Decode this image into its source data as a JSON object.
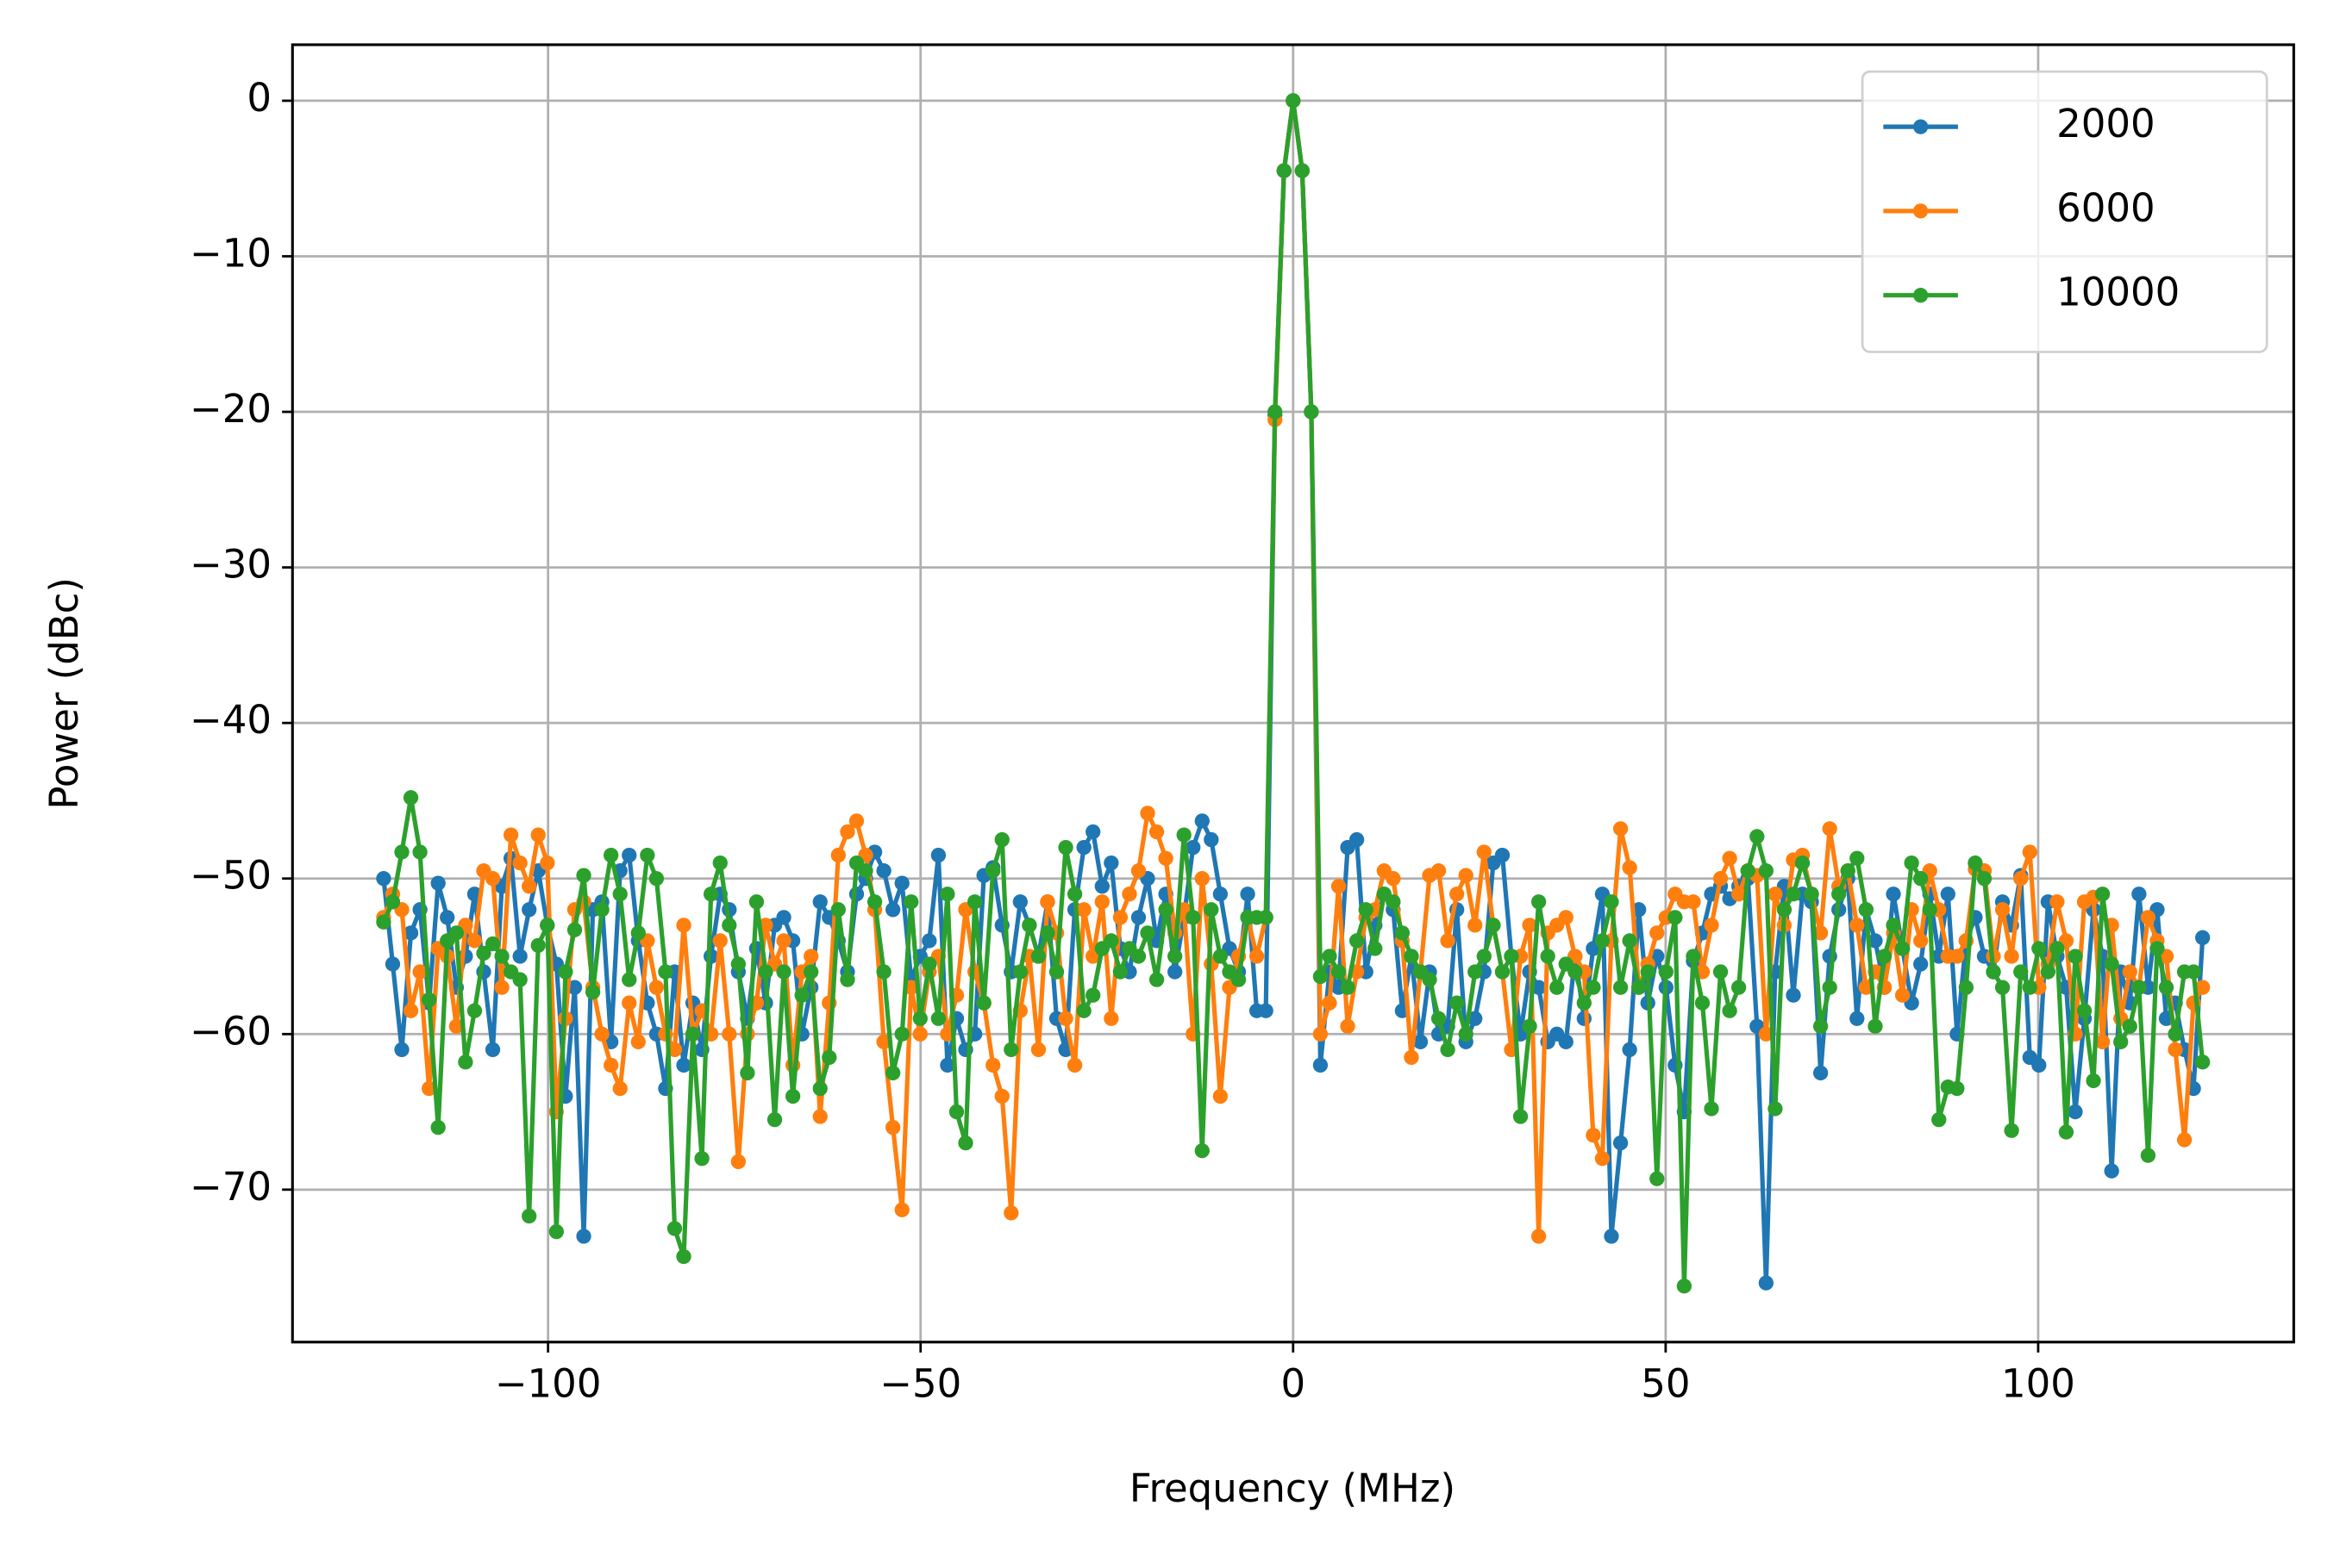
{
  "chart_data": {
    "type": "line",
    "xlabel": "Frequency (MHz)",
    "ylabel": "Power (dBc)",
    "xlim": [
      -134.3,
      134.3
    ],
    "ylim": [
      -79.8,
      3.6
    ],
    "xticks": [
      {
        "value": -100,
        "label": "−100"
      },
      {
        "value": -50,
        "label": "−50"
      },
      0,
      50,
      100
    ],
    "yticks": [
      0,
      {
        "value": -10,
        "label": "−10"
      },
      {
        "value": -20,
        "label": "−20"
      },
      {
        "value": -30,
        "label": "−30"
      },
      {
        "value": -40,
        "label": "−40"
      },
      {
        "value": -50,
        "label": "−50"
      },
      {
        "value": -60,
        "label": "−60"
      },
      {
        "value": -70,
        "label": "−70"
      }
    ],
    "grid": true,
    "legend": "upper right",
    "x": [
      -122.07,
      -120.85,
      -119.63,
      -118.41,
      -117.19,
      -115.97,
      -114.75,
      -113.53,
      -112.3,
      -111.08,
      -109.86,
      -108.64,
      -107.42,
      -106.2,
      -104.98,
      -103.76,
      -102.54,
      -101.32,
      -100.1,
      -98.88,
      -97.66,
      -96.43,
      -95.21,
      -93.99,
      -92.77,
      -91.55,
      -90.33,
      -89.11,
      -87.89,
      -86.67,
      -85.45,
      -84.23,
      -83.01,
      -81.79,
      -80.57,
      -79.35,
      -78.13,
      -76.9,
      -75.68,
      -74.46,
      -73.24,
      -72.02,
      -70.8,
      -69.58,
      -68.36,
      -67.14,
      -65.92,
      -64.7,
      -63.48,
      -62.26,
      -61.04,
      -59.81,
      -58.59,
      -57.37,
      -56.15,
      -54.93,
      -53.71,
      -52.49,
      -51.27,
      -50.05,
      -48.83,
      -47.61,
      -46.39,
      -45.17,
      -43.95,
      -42.72,
      -41.5,
      -40.28,
      -39.06,
      -37.84,
      -36.62,
      -35.4,
      -34.18,
      -32.96,
      -31.74,
      -30.52,
      -29.3,
      -28.08,
      -26.86,
      -25.63,
      -24.41,
      -23.19,
      -21.97,
      -20.75,
      -19.53,
      -18.31,
      -17.09,
      -15.87,
      -14.65,
      -13.43,
      -12.21,
      -10.99,
      -9.77,
      -8.54,
      -7.32,
      -6.1,
      -4.88,
      -3.66,
      -2.44,
      -1.22,
      0,
      1.22,
      2.44,
      3.66,
      4.88,
      6.1,
      7.32,
      8.54,
      9.77,
      10.99,
      12.21,
      13.43,
      14.65,
      15.87,
      17.09,
      18.31,
      19.53,
      20.75,
      21.97,
      23.19,
      24.41,
      25.63,
      26.86,
      28.08,
      29.3,
      30.52,
      31.74,
      32.96,
      34.18,
      35.4,
      36.62,
      37.84,
      39.06,
      40.28,
      41.5,
      42.72,
      43.95,
      45.17,
      46.39,
      47.61,
      48.83,
      50.05,
      51.27,
      52.49,
      53.71,
      54.93,
      56.15,
      57.37,
      58.59,
      59.81,
      61.04,
      62.26,
      63.48,
      64.7,
      65.92,
      67.14,
      68.36,
      69.58,
      70.8,
      72.02,
      73.24,
      74.46,
      75.68,
      76.9,
      78.13,
      79.35,
      80.57,
      81.79,
      83.01,
      84.23,
      85.45,
      86.67,
      87.89,
      89.11,
      90.33,
      91.55,
      92.77,
      93.99,
      95.21,
      96.43,
      97.66,
      98.88,
      100.1,
      101.32,
      102.54,
      103.76,
      104.98,
      106.2,
      107.42,
      108.64,
      109.86,
      111.08,
      112.3,
      113.53,
      114.75,
      115.97,
      117.19,
      118.41,
      119.63,
      120.85,
      122.07
    ],
    "series": [
      {
        "name": "2000",
        "color": "#1f77b4",
        "values": [
          -50,
          -55.5,
          -61,
          -53.5,
          -52,
          -58,
          -50.3,
          -52.5,
          -57,
          -55,
          -51,
          -56,
          -61,
          -50.5,
          -48.7,
          -55,
          -52,
          -49.5,
          -53,
          -55.5,
          -64,
          -57,
          -73,
          -52,
          -51.5,
          -60.5,
          -49.5,
          -48.5,
          -54,
          -58,
          -60,
          -63.5,
          -56,
          -62,
          -58,
          -61,
          -55,
          -51,
          -52,
          -56,
          -59,
          -54.5,
          -58,
          -53,
          -52.5,
          -54,
          -60,
          -57,
          -51.5,
          -52.5,
          -54,
          -56,
          -51,
          -50,
          -48.3,
          -49.5,
          -52,
          -50.3,
          -56.5,
          -55,
          -54,
          -48.5,
          -62,
          -59,
          -61,
          -60,
          -49.8,
          -49.3,
          -53,
          -56,
          -51.5,
          -53,
          -55,
          -51.5,
          -59,
          -61,
          -52,
          -48,
          -47,
          -50.5,
          -49,
          -54.5,
          -56,
          -52.5,
          -50,
          -54,
          -51,
          -56,
          -52.5,
          -48,
          -46.3,
          -47.5,
          -51,
          -54.5,
          -56,
          -51,
          -58.5,
          -58.5,
          -20.2,
          -4.5,
          0,
          -4.5,
          -20,
          -62,
          -56,
          -57,
          -48,
          -47.5,
          -56,
          -53,
          -51,
          -52,
          -58.5,
          -55,
          -60.5,
          -56,
          -60,
          -59.5,
          -52,
          -60.5,
          -59,
          -56,
          -49,
          -48.5,
          -55,
          -60,
          -56,
          -57,
          -60.5,
          -60,
          -60.5,
          -55,
          -59,
          -54.5,
          -51,
          -73,
          -67,
          -61,
          -52,
          -58,
          -55,
          -57,
          -62,
          -65,
          -55.3,
          -53.5,
          -51,
          -50.5,
          -51.3,
          -50.5,
          -50,
          -59.5,
          -76,
          -56,
          -50.5,
          -57.5,
          -51,
          -51.5,
          -62.5,
          -55,
          -52,
          -50,
          -59,
          -52,
          -54,
          -57,
          -51,
          -54.5,
          -58,
          -55.5,
          -51,
          -55,
          -51,
          -60,
          -54,
          -52.5,
          -55,
          -56,
          -51.5,
          -53,
          -49.8,
          -61.5,
          -62,
          -51.5,
          -55,
          -57,
          -65,
          -59,
          -52,
          -55,
          -68.8,
          -56,
          -58,
          -51,
          -57,
          -52,
          -59,
          -58,
          -61,
          -63.5,
          -53.8
        ]
      },
      {
        "name": "6000",
        "color": "#ff7f0e",
        "values": [
          -52.5,
          -51,
          -52,
          -58.5,
          -56,
          -63.5,
          -54.5,
          -55,
          -59.5,
          -53,
          -54,
          -49.5,
          -50,
          -57,
          -47.2,
          -49,
          -50.5,
          -47.2,
          -49,
          -65,
          -59,
          -52,
          -51.5,
          -57,
          -60,
          -62,
          -63.5,
          -58,
          -60.5,
          -54,
          -57,
          -60,
          -61,
          -53,
          -60,
          -58.5,
          -60,
          -54,
          -60,
          -68.2,
          -60,
          -58,
          -53,
          -55.5,
          -54,
          -62,
          -56,
          -55,
          -65.3,
          -58,
          -48.5,
          -47,
          -46.3,
          -48.5,
          -52,
          -60.5,
          -66,
          -71.3,
          -57,
          -60,
          -56,
          -55,
          -60,
          -57.5,
          -52,
          -56,
          -58,
          -62,
          -64,
          -71.5,
          -58.5,
          -55,
          -61,
          -51.5,
          -53.5,
          -59,
          -62,
          -52,
          -55,
          -51.5,
          -59,
          -52.5,
          -51,
          -49.5,
          -45.8,
          -47,
          -48.7,
          -53.5,
          -52,
          -60,
          -50,
          -55.5,
          -64,
          -57,
          -55,
          -52.5,
          -55,
          -52.5,
          -20.5,
          -4.5,
          0,
          -4.5,
          -20,
          -60,
          -58,
          -50.5,
          -59.5,
          -56,
          -52.5,
          -52,
          -49.5,
          -50,
          -54,
          -61.5,
          -56,
          -49.8,
          -49.5,
          -54,
          -51,
          -49.8,
          -53,
          -48.3,
          -53,
          -56,
          -61,
          -55,
          -53,
          -73,
          -53.5,
          -53,
          -52.5,
          -55,
          -56,
          -66.5,
          -68,
          -54,
          -46.8,
          -49.3,
          -57,
          -55.5,
          -53.5,
          -52.5,
          -51,
          -51.5,
          -51.5,
          -56,
          -53,
          -50,
          -48.7,
          -51,
          -49.5,
          -49.8,
          -60,
          -51,
          -53,
          -48.8,
          -48.5,
          -51,
          -53.5,
          -46.8,
          -50.5,
          -49.5,
          -53,
          -57,
          -56,
          -57,
          -53.5,
          -57.5,
          -52,
          -54,
          -49.5,
          -52,
          -55,
          -55,
          -54,
          -49.4,
          -49.5,
          -55,
          -52,
          -55,
          -50,
          -48.3,
          -57,
          -55.5,
          -51.5,
          -54,
          -60,
          -51.5,
          -51.2,
          -60.5,
          -53,
          -59,
          -56,
          -57,
          -52.5,
          -54,
          -55,
          -61,
          -66.8,
          -58,
          -57
        ]
      },
      {
        "name": "10000",
        "color": "#2ca02c",
        "values": [
          -52.8,
          -51.5,
          -48.3,
          -44.8,
          -48.3,
          -57.8,
          -66,
          -54,
          -53.5,
          -61.8,
          -58.5,
          -54.8,
          -54.2,
          -55,
          -56,
          -56.5,
          -71.7,
          -54.3,
          -53,
          -72.7,
          -56,
          -53.3,
          -49.8,
          -57.3,
          -52,
          -48.5,
          -51,
          -56.5,
          -53.5,
          -48.5,
          -50,
          -56,
          -72.5,
          -74.3,
          -60,
          -68,
          -51,
          -49,
          -53,
          -55.5,
          -62.5,
          -51.5,
          -56,
          -65.5,
          -56,
          -64,
          -57.5,
          -56,
          -63.5,
          -61.5,
          -52,
          -56.5,
          -49,
          -49.5,
          -51.5,
          -56,
          -62.5,
          -60,
          -51.5,
          -59,
          -55.5,
          -59,
          -51,
          -65,
          -67,
          -51.5,
          -58,
          -49.5,
          -47.5,
          -61,
          -56,
          -53,
          -55,
          -53.5,
          -56,
          -48,
          -51,
          -58.5,
          -57.5,
          -54.5,
          -54,
          -56,
          -54.5,
          -55,
          -53.5,
          -56.5,
          -52,
          -55,
          -47.2,
          -52.5,
          -67.5,
          -52,
          -55,
          -56,
          -56.5,
          -52.5,
          -52.5,
          -52.5,
          -20,
          -4.5,
          0,
          -4.5,
          -20,
          -56.3,
          -55,
          -56,
          -57,
          -54,
          -52,
          -54.5,
          -51,
          -51.5,
          -53.5,
          -55,
          -56,
          -56.5,
          -59,
          -61,
          -58,
          -60,
          -56,
          -55,
          -53,
          -56,
          -55,
          -65.3,
          -59.5,
          -51.5,
          -55,
          -57,
          -55.5,
          -56,
          -58,
          -57,
          -54,
          -51.5,
          -57,
          -54,
          -57,
          -56,
          -69.3,
          -56,
          -52.5,
          -76.2,
          -55,
          -58,
          -64.8,
          -56,
          -58.5,
          -57,
          -49.5,
          -47.3,
          -49.5,
          -64.8,
          -52,
          -51,
          -49,
          -51,
          -59.5,
          -57,
          -51,
          -49.5,
          -48.7,
          -52,
          -59.5,
          -55,
          -53,
          -54.5,
          -49,
          -50,
          -52,
          -65.5,
          -63.4,
          -63.5,
          -57,
          -49,
          -50,
          -56,
          -57,
          -66.2,
          -56,
          -57,
          -54.5,
          -56,
          -54.5,
          -66.3,
          -55,
          -58.5,
          -63,
          -51,
          -55.5,
          -60.5,
          -59.5,
          -57,
          -67.8,
          -54.5,
          -57,
          -60,
          -56,
          -56,
          -61.8
        ]
      }
    ]
  }
}
